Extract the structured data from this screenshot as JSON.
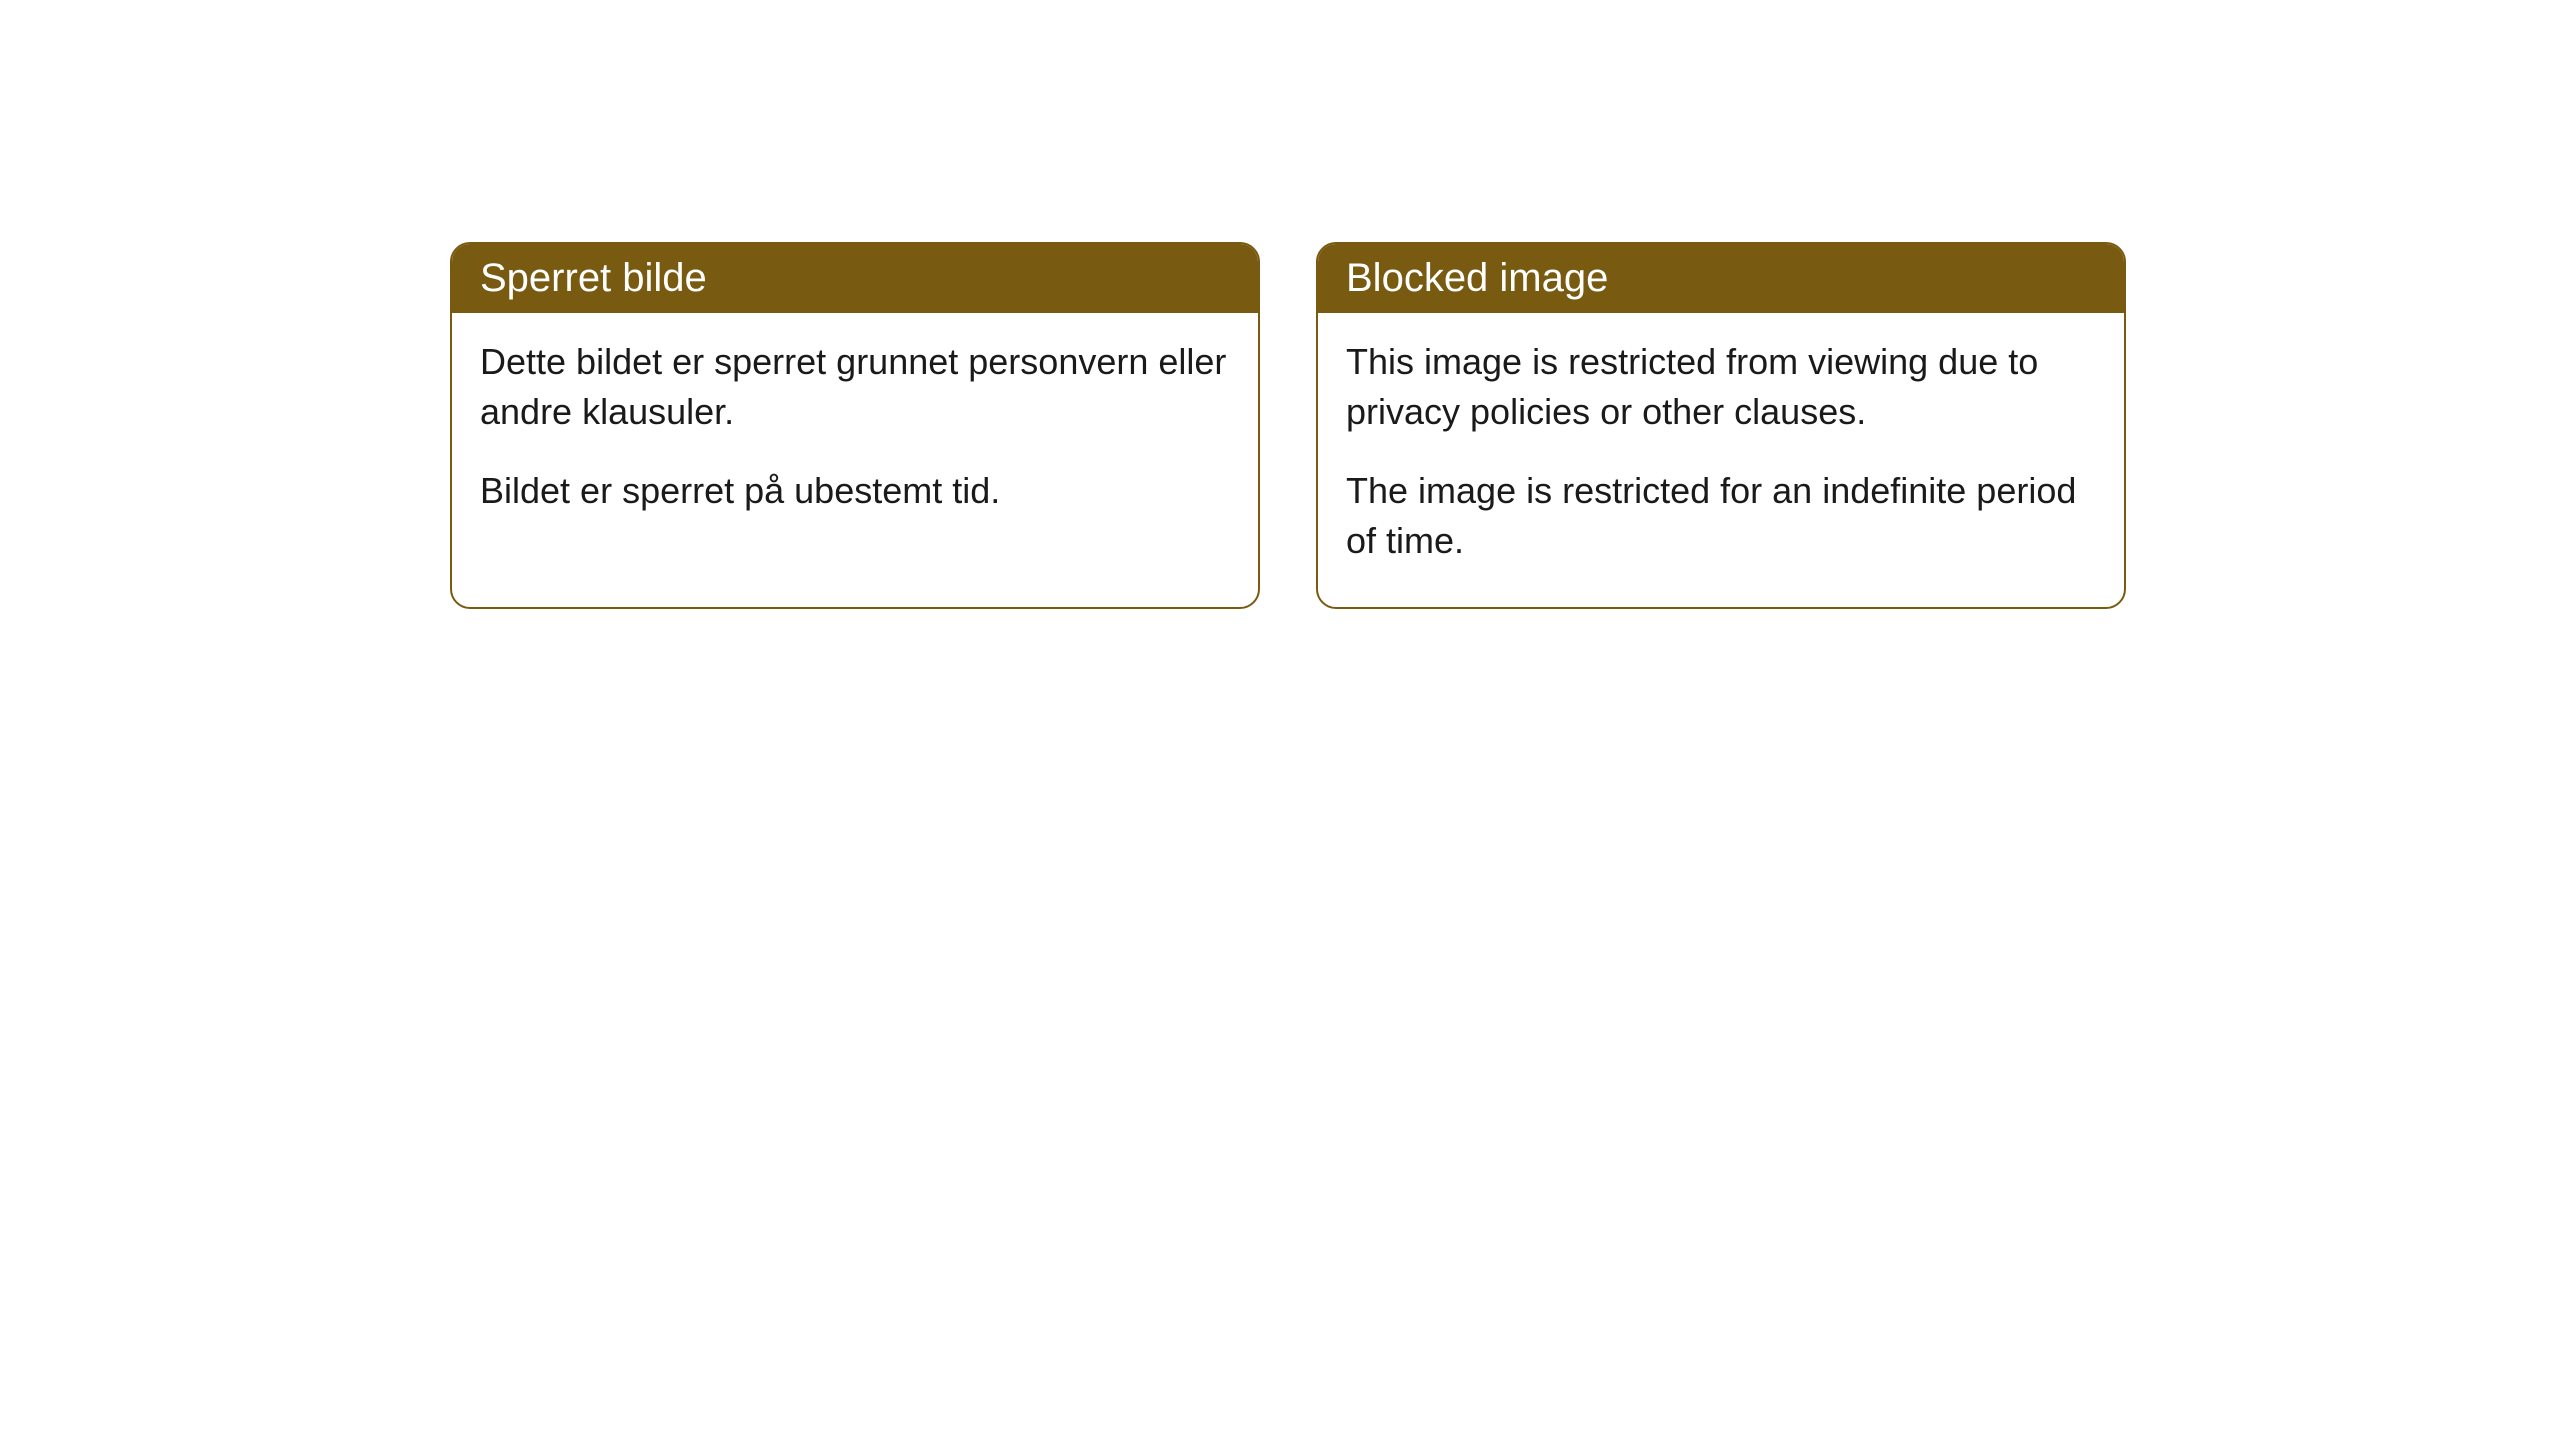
{
  "cards": [
    {
      "title": "Sperret bilde",
      "paragraph1": "Dette bildet er sperret grunnet personvern eller andre klausuler.",
      "paragraph2": "Bildet er sperret på ubestemt tid."
    },
    {
      "title": "Blocked image",
      "paragraph1": "This image is restricted from viewing due to privacy policies or other clauses.",
      "paragraph2": "The image is restricted for an indefinite period of time."
    }
  ],
  "styling": {
    "header_background": "#785a11",
    "header_text_color": "#ffffff",
    "border_color": "#785a11",
    "card_background": "#ffffff",
    "body_text_color": "#1a1a1a",
    "border_radius": 20,
    "header_font_size": 40,
    "body_font_size": 36
  }
}
